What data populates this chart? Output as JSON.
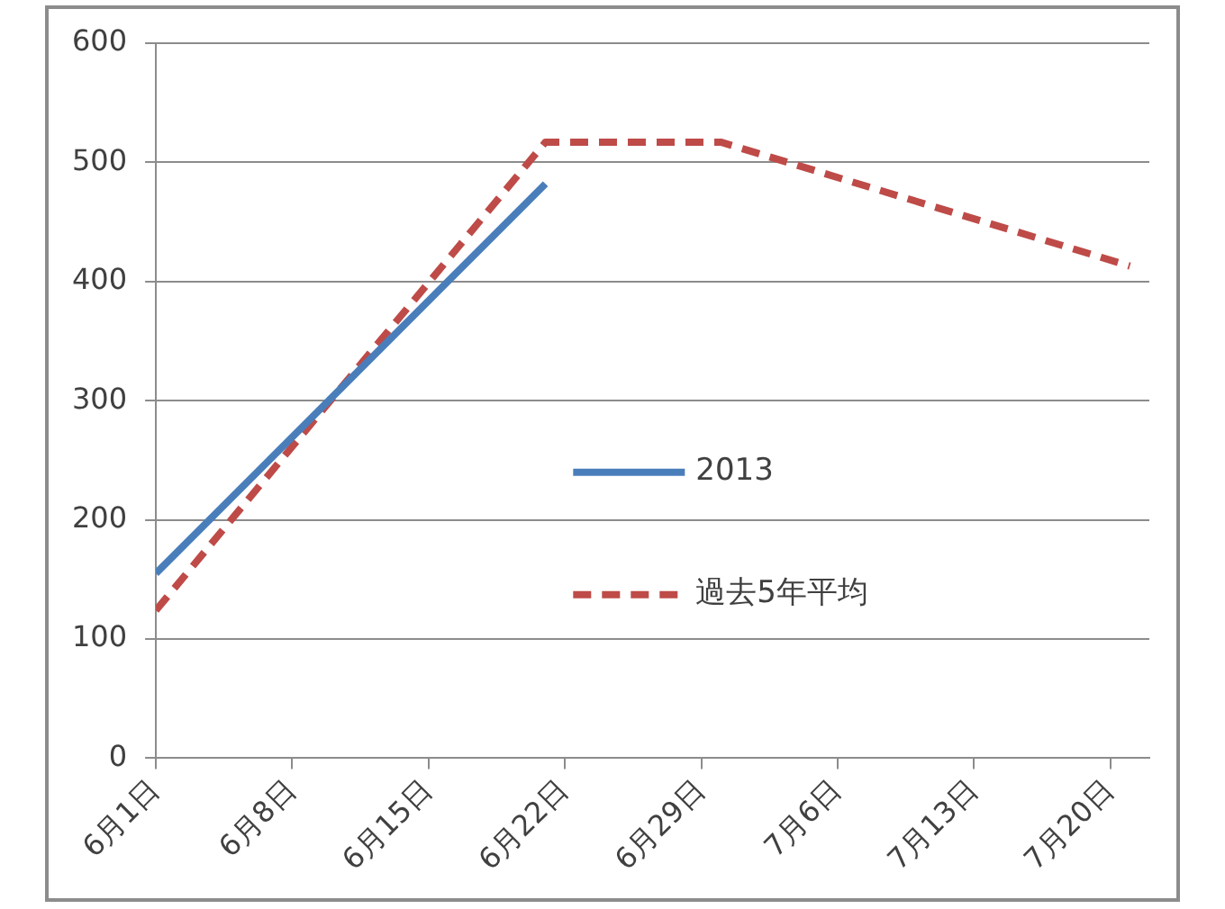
{
  "chart_data": {
    "type": "line",
    "xlim": [
      "--06-01",
      "--07-22"
    ],
    "xticks": [
      {
        "value": "--06-01",
        "label": "6月1日"
      },
      {
        "value": "--06-08",
        "label": "6月8日"
      },
      {
        "value": "--06-15",
        "label": "6月15日"
      },
      {
        "value": "--06-22",
        "label": "6月22日"
      },
      {
        "value": "--06-29",
        "label": "6月29日"
      },
      {
        "value": "--07-06",
        "label": "7月6日"
      },
      {
        "value": "--07-13",
        "label": "7月13日"
      },
      {
        "value": "--07-20",
        "label": "7月20日"
      }
    ],
    "ylim": [
      0,
      600
    ],
    "yticks": [
      0,
      100,
      200,
      300,
      400,
      500,
      600
    ],
    "grid": "y",
    "legend": "center",
    "marker": "none",
    "series": [
      {
        "name": "2013",
        "color": "#4a7ebb",
        "x": [
          "--06-01",
          "--06-21"
        ],
        "values": [
          155,
          482
        ],
        "line_style": "solid"
      },
      {
        "name": "過去5年平均",
        "color": "#be4b48",
        "x": [
          "--06-01",
          "--06-21",
          "--06-30",
          "--07-21"
        ],
        "values": [
          124,
          517,
          517,
          413
        ],
        "line_style": "dashed"
      }
    ]
  }
}
